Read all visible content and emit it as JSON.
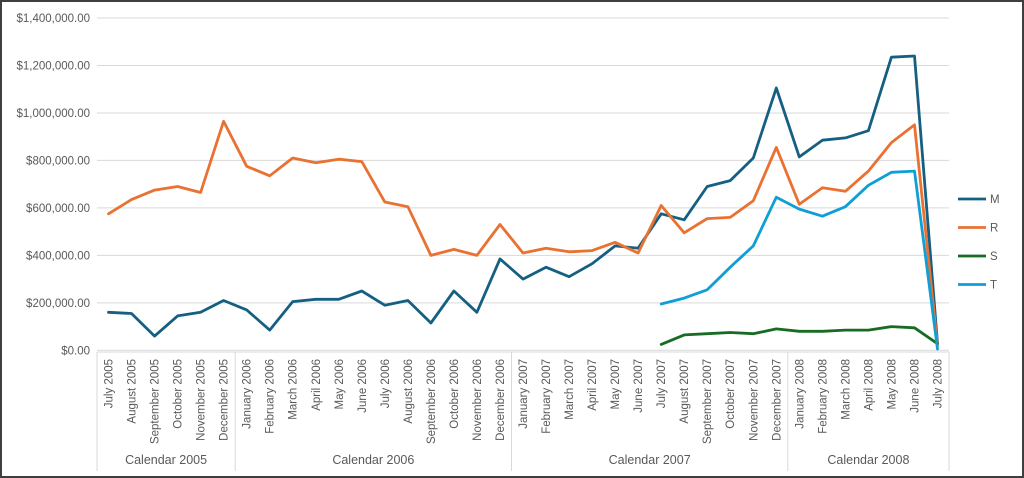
{
  "window": {
    "background": "#ffffff",
    "border_color": "#3f3f3f"
  },
  "chart_data": {
    "type": "line",
    "title": "",
    "xlabel": "",
    "ylabel": "",
    "grid": true,
    "legend_position": "right",
    "categories": [
      "July 2005",
      "August 2005",
      "September 2005",
      "October 2005",
      "November 2005",
      "December 2005",
      "January 2006",
      "February 2006",
      "March 2006",
      "April 2006",
      "May 2006",
      "June 2006",
      "July 2006",
      "August 2006",
      "September 2006",
      "October 2006",
      "November 2006",
      "December 2006",
      "January 2007",
      "February 2007",
      "March 2007",
      "April 2007",
      "May 2007",
      "June 2007",
      "July 2007",
      "August 2007",
      "September 2007",
      "October 2007",
      "November 2007",
      "December 2007",
      "January 2008",
      "February 2008",
      "March 2008",
      "April 2008",
      "May 2008",
      "June 2008",
      "July 2008"
    ],
    "x_axis_groups": [
      {
        "label": "Calendar 2005",
        "span": 6
      },
      {
        "label": "Calendar 2006",
        "span": 12
      },
      {
        "label": "Calendar 2007",
        "span": 12
      },
      {
        "label": "Calendar 2008",
        "span": 7
      }
    ],
    "y_axis": {
      "min": 0,
      "max": 1400000,
      "tick_step": 200000,
      "tick_labels": [
        "$0.00",
        "$200,000.00",
        "$400,000.00",
        "$600,000.00",
        "$800,000.00",
        "$1,000,000.00",
        "$1,200,000.00",
        "$1,400,000.00"
      ]
    },
    "series": [
      {
        "name": "M",
        "color": "#156082",
        "values": [
          160000,
          155000,
          60000,
          145000,
          160000,
          210000,
          170000,
          85000,
          205000,
          215000,
          215000,
          250000,
          190000,
          210000,
          115000,
          250000,
          160000,
          385000,
          300000,
          350000,
          310000,
          365000,
          440000,
          430000,
          575000,
          550000,
          690000,
          715000,
          810000,
          1105000,
          815000,
          885000,
          895000,
          925000,
          1235000,
          1240000,
          30000
        ]
      },
      {
        "name": "R",
        "color": "#E97132",
        "values": [
          575000,
          635000,
          675000,
          690000,
          665000,
          965000,
          775000,
          735000,
          810000,
          790000,
          805000,
          795000,
          625000,
          605000,
          400000,
          425000,
          400000,
          530000,
          410000,
          430000,
          415000,
          420000,
          455000,
          410000,
          610000,
          495000,
          555000,
          560000,
          630000,
          855000,
          615000,
          685000,
          670000,
          755000,
          875000,
          950000,
          20000
        ]
      },
      {
        "name": "S",
        "color": "#196B24",
        "values": [
          null,
          null,
          null,
          null,
          null,
          null,
          null,
          null,
          null,
          null,
          null,
          null,
          null,
          null,
          null,
          null,
          null,
          null,
          null,
          null,
          null,
          null,
          null,
          null,
          25000,
          65000,
          70000,
          75000,
          70000,
          90000,
          80000,
          80000,
          85000,
          85000,
          100000,
          95000,
          28000
        ]
      },
      {
        "name": "T",
        "color": "#0F9ED5",
        "values": [
          null,
          null,
          null,
          null,
          null,
          null,
          null,
          null,
          null,
          null,
          null,
          null,
          null,
          null,
          null,
          null,
          null,
          null,
          null,
          null,
          null,
          null,
          null,
          null,
          195000,
          220000,
          255000,
          350000,
          440000,
          645000,
          595000,
          565000,
          605000,
          695000,
          750000,
          755000,
          5000
        ]
      }
    ],
    "styles": {
      "gridline_color": "#D9D9D9",
      "axis_text_color": "#595959",
      "line_width": 2.8
    }
  }
}
